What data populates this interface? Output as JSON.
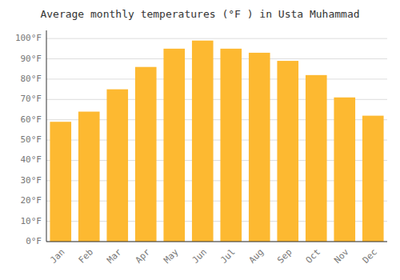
{
  "chart_data": {
    "type": "bar",
    "title": "Average monthly temperatures (°F ) in Usta Muhammad",
    "categories": [
      "Jan",
      "Feb",
      "Mar",
      "Apr",
      "May",
      "Jun",
      "Jul",
      "Aug",
      "Sep",
      "Oct",
      "Nov",
      "Dec"
    ],
    "values": [
      59,
      64,
      75,
      86,
      95,
      99,
      95,
      93,
      89,
      82,
      71,
      62
    ],
    "color": "#FDB931",
    "ylim": [
      0,
      104
    ],
    "yticks": [
      {
        "value": 0,
        "label": "0°F"
      },
      {
        "value": 10,
        "label": "10°F"
      },
      {
        "value": 20,
        "label": "20°F"
      },
      {
        "value": 30,
        "label": "30°F"
      },
      {
        "value": 40,
        "label": "40°F"
      },
      {
        "value": 50,
        "label": "50°F"
      },
      {
        "value": 60,
        "label": "60°F"
      },
      {
        "value": 70,
        "label": "70°F"
      },
      {
        "value": 80,
        "label": "80°F"
      },
      {
        "value": 90,
        "label": "90°F"
      },
      {
        "value": 100,
        "label": "100°F"
      }
    ],
    "grid": true
  }
}
